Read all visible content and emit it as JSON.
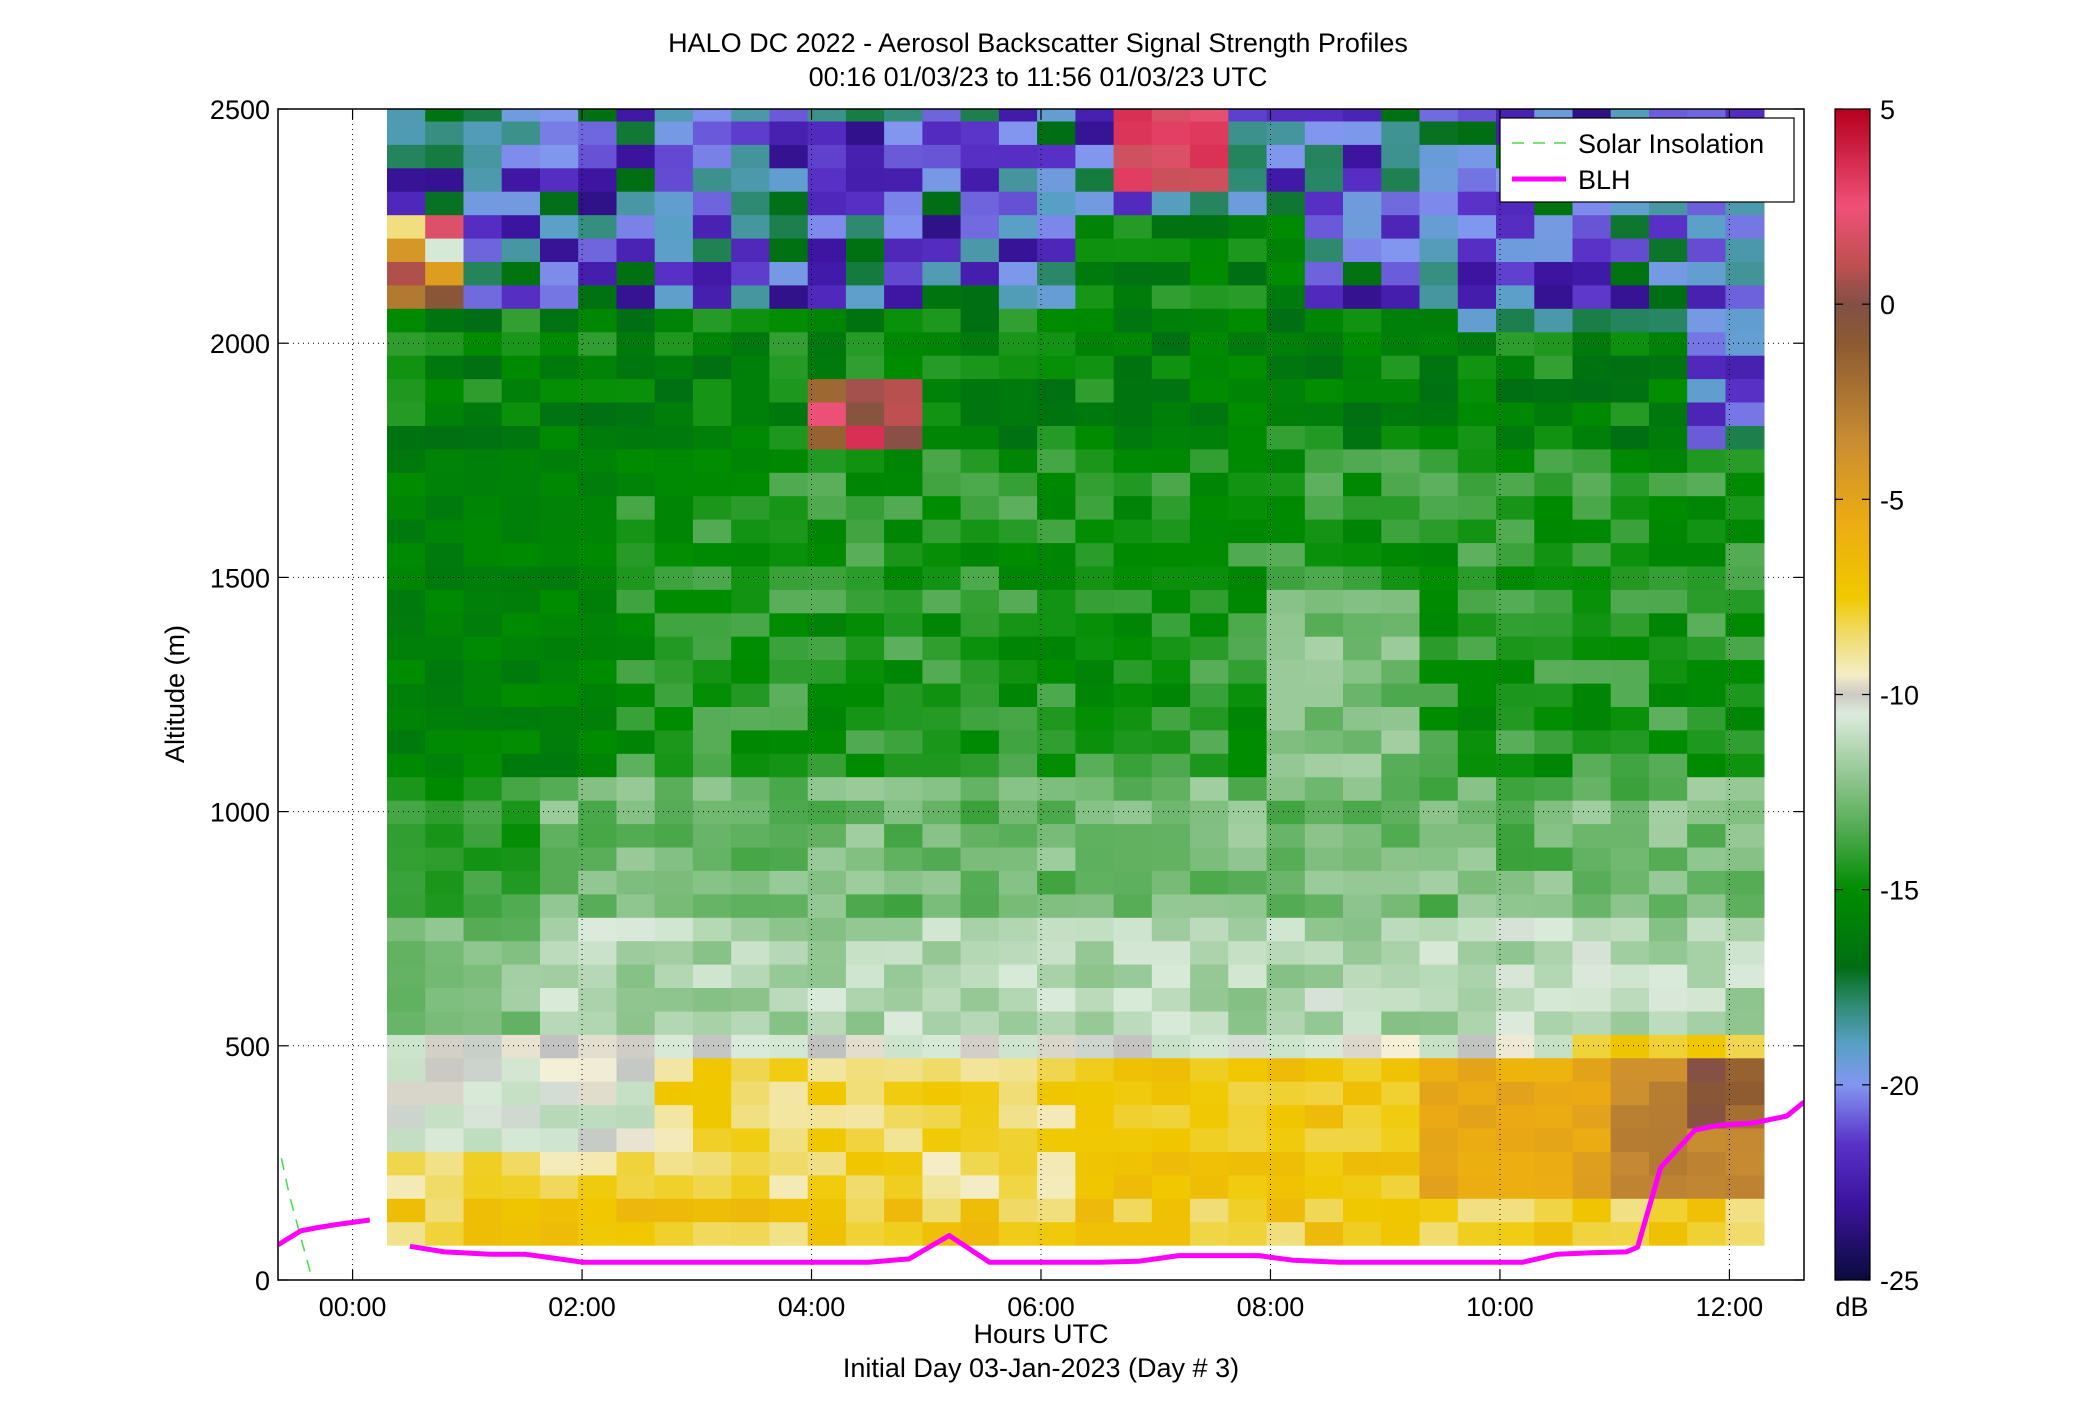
{
  "chart_data": {
    "type": "heatmap",
    "title": "HALO DC 2022 - Aerosol Backscatter Signal Strength Profiles",
    "subtitle": "00:16 01/03/23 to 11:56 01/03/23  UTC",
    "xlabel": "Hours UTC",
    "xlabel2": "Initial Day 03-Jan-2023 (Day # 3)",
    "ylabel": "Altitude (m)",
    "xlim": [
      -0.65,
      12.65
    ],
    "ylim": [
      0,
      2500
    ],
    "x_ticks": [
      0,
      2,
      4,
      6,
      8,
      10,
      12
    ],
    "x_tick_labels": [
      "00:00",
      "02:00",
      "04:00",
      "06:00",
      "08:00",
      "10:00",
      "12:00"
    ],
    "y_ticks": [
      0,
      500,
      1000,
      1500,
      2000,
      2500
    ],
    "y_tick_labels": [
      "0",
      "500",
      "1000",
      "1500",
      "2000",
      "2500"
    ],
    "grid": true,
    "legend_position": "top-right",
    "colorbar": {
      "label": "dB",
      "min": -25,
      "max": 5,
      "ticks": [
        5,
        0,
        -5,
        -10,
        -15,
        -20,
        -25
      ],
      "tick_labels": [
        "5",
        "0",
        "-5",
        "-10",
        "-15",
        "-20",
        "-25"
      ]
    },
    "heatmap": {
      "x_start": 0.3,
      "x_step": 0.3333,
      "columns": 36,
      "altitudes": [
        100,
        150,
        200,
        250,
        300,
        350,
        400,
        450,
        500,
        550,
        600,
        650,
        700,
        750,
        800,
        850,
        900,
        950,
        1000,
        1050,
        1100,
        1150,
        1200,
        1250,
        1300,
        1350,
        1400,
        1450,
        1500,
        1550,
        1600,
        1650,
        1700,
        1750,
        1800,
        1850,
        1900,
        1950,
        2000,
        2050,
        2100,
        2150,
        2200,
        2250,
        2300,
        2350,
        2400,
        2450,
        2500
      ],
      "bin_height": 50
    },
    "series": [
      {
        "name": "Solar Insolation",
        "style": "dashed",
        "color": "#44dd44",
        "x": [
          -0.62,
          -0.55,
          -0.45,
          -0.35
        ],
        "y": [
          260,
          180,
          90,
          0
        ]
      },
      {
        "name": "BLH",
        "style": "solid",
        "color": "#ff00ff",
        "segments": [
          {
            "x": [
              -0.65,
              -0.45,
              -0.3,
              -0.15,
              0,
              0.15
            ],
            "y": [
              75,
              105,
              112,
              118,
              123,
              128
            ]
          },
          {
            "x": [
              0.5,
              0.8,
              1.2,
              1.5,
              1.8,
              2.0,
              2.5,
              3.0,
              3.5,
              4.0,
              4.5,
              4.85,
              5.2,
              5.55,
              6.0,
              6.5,
              6.85,
              7.2,
              7.6,
              7.9,
              8.2,
              8.6,
              9.0,
              9.5,
              10.0,
              10.2,
              10.5,
              10.8,
              11.1,
              11.2,
              11.4,
              11.7,
              11.9,
              12.2,
              12.5,
              12.65
            ],
            "y": [
              72,
              60,
              55,
              55,
              45,
              38,
              38,
              38,
              38,
              38,
              38,
              45,
              95,
              38,
              38,
              38,
              40,
              52,
              52,
              52,
              42,
              38,
              38,
              38,
              38,
              38,
              55,
              58,
              60,
              70,
              240,
              320,
              330,
              335,
              350,
              380
            ]
          }
        ]
      }
    ]
  }
}
